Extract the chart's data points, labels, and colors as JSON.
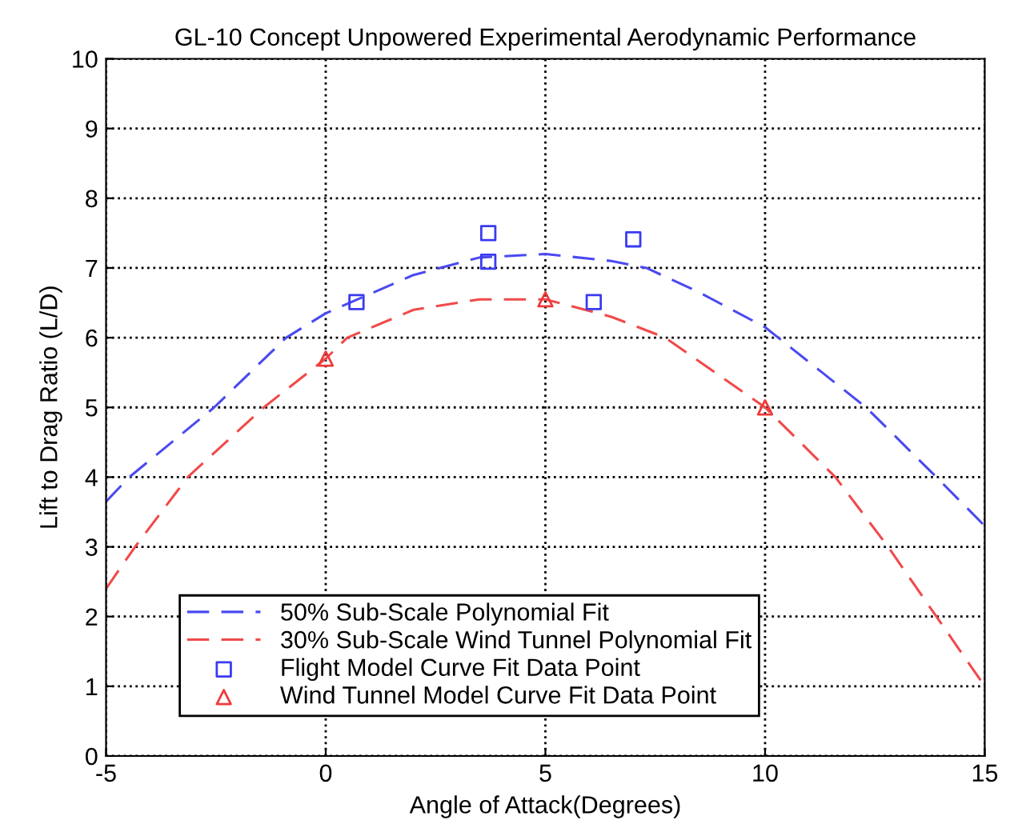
{
  "chart_data": {
    "type": "line",
    "title": "GL-10 Concept Unpowered Experimental Aerodynamic Performance",
    "xlabel": "Angle of Attack(Degrees)",
    "ylabel": "Lift to Drag Ratio (L/D)",
    "xlim": [
      -5,
      15
    ],
    "xticks": [
      -5,
      0,
      5,
      10,
      15
    ],
    "ylim": [
      0,
      10
    ],
    "yticks": [
      0,
      1,
      2,
      3,
      4,
      5,
      6,
      7,
      8,
      9,
      10
    ],
    "grid": true,
    "legend": "bottom left",
    "series": [
      {
        "name": "50% Sub-Scale Polynomial Fit",
        "line_style": "dashed",
        "marker": "none",
        "color": "#4a4af0",
        "x": [
          -5,
          -4.47,
          -2.54,
          -0.9,
          0,
          2,
          3.5,
          5,
          6.5,
          7.3,
          8.5,
          10,
          11.3,
          12.3,
          13.9,
          15
        ],
        "values": [
          3.65,
          4,
          5,
          6,
          6.35,
          6.9,
          7.15,
          7.2,
          7.1,
          7.0,
          6.65,
          6.15,
          5.5,
          5,
          4,
          3.3
        ]
      },
      {
        "name": "30% Sub-Scale Wind Tunnel Polynomial Fit",
        "line_style": "dashed",
        "marker": "none",
        "color": "#f04a4a",
        "x": [
          -5,
          -4.34,
          -3.14,
          -1.41,
          0,
          0.49,
          2,
          3.5,
          5,
          6.5,
          7.73,
          10,
          11.6,
          12.8,
          13.9,
          15
        ],
        "values": [
          2.4,
          3,
          4,
          5,
          5.7,
          6,
          6.4,
          6.55,
          6.55,
          6.3,
          6,
          5,
          4,
          3,
          2,
          1.0
        ]
      },
      {
        "name": "Flight Model Curve Fit Data Point",
        "type": "scatter",
        "marker": "square",
        "color": "#3a3af0",
        "x": [
          0.7,
          3.7,
          3.7,
          6.1,
          7.0
        ],
        "values": [
          6.51,
          7.5,
          7.09,
          6.51,
          7.41
        ]
      },
      {
        "name": "Wind Tunnel Model Curve Fit Data Point",
        "type": "scatter",
        "marker": "triangle",
        "color": "#f03a3a",
        "x": [
          0,
          5,
          10
        ],
        "values": [
          5.7,
          6.55,
          5.0
        ]
      }
    ]
  }
}
